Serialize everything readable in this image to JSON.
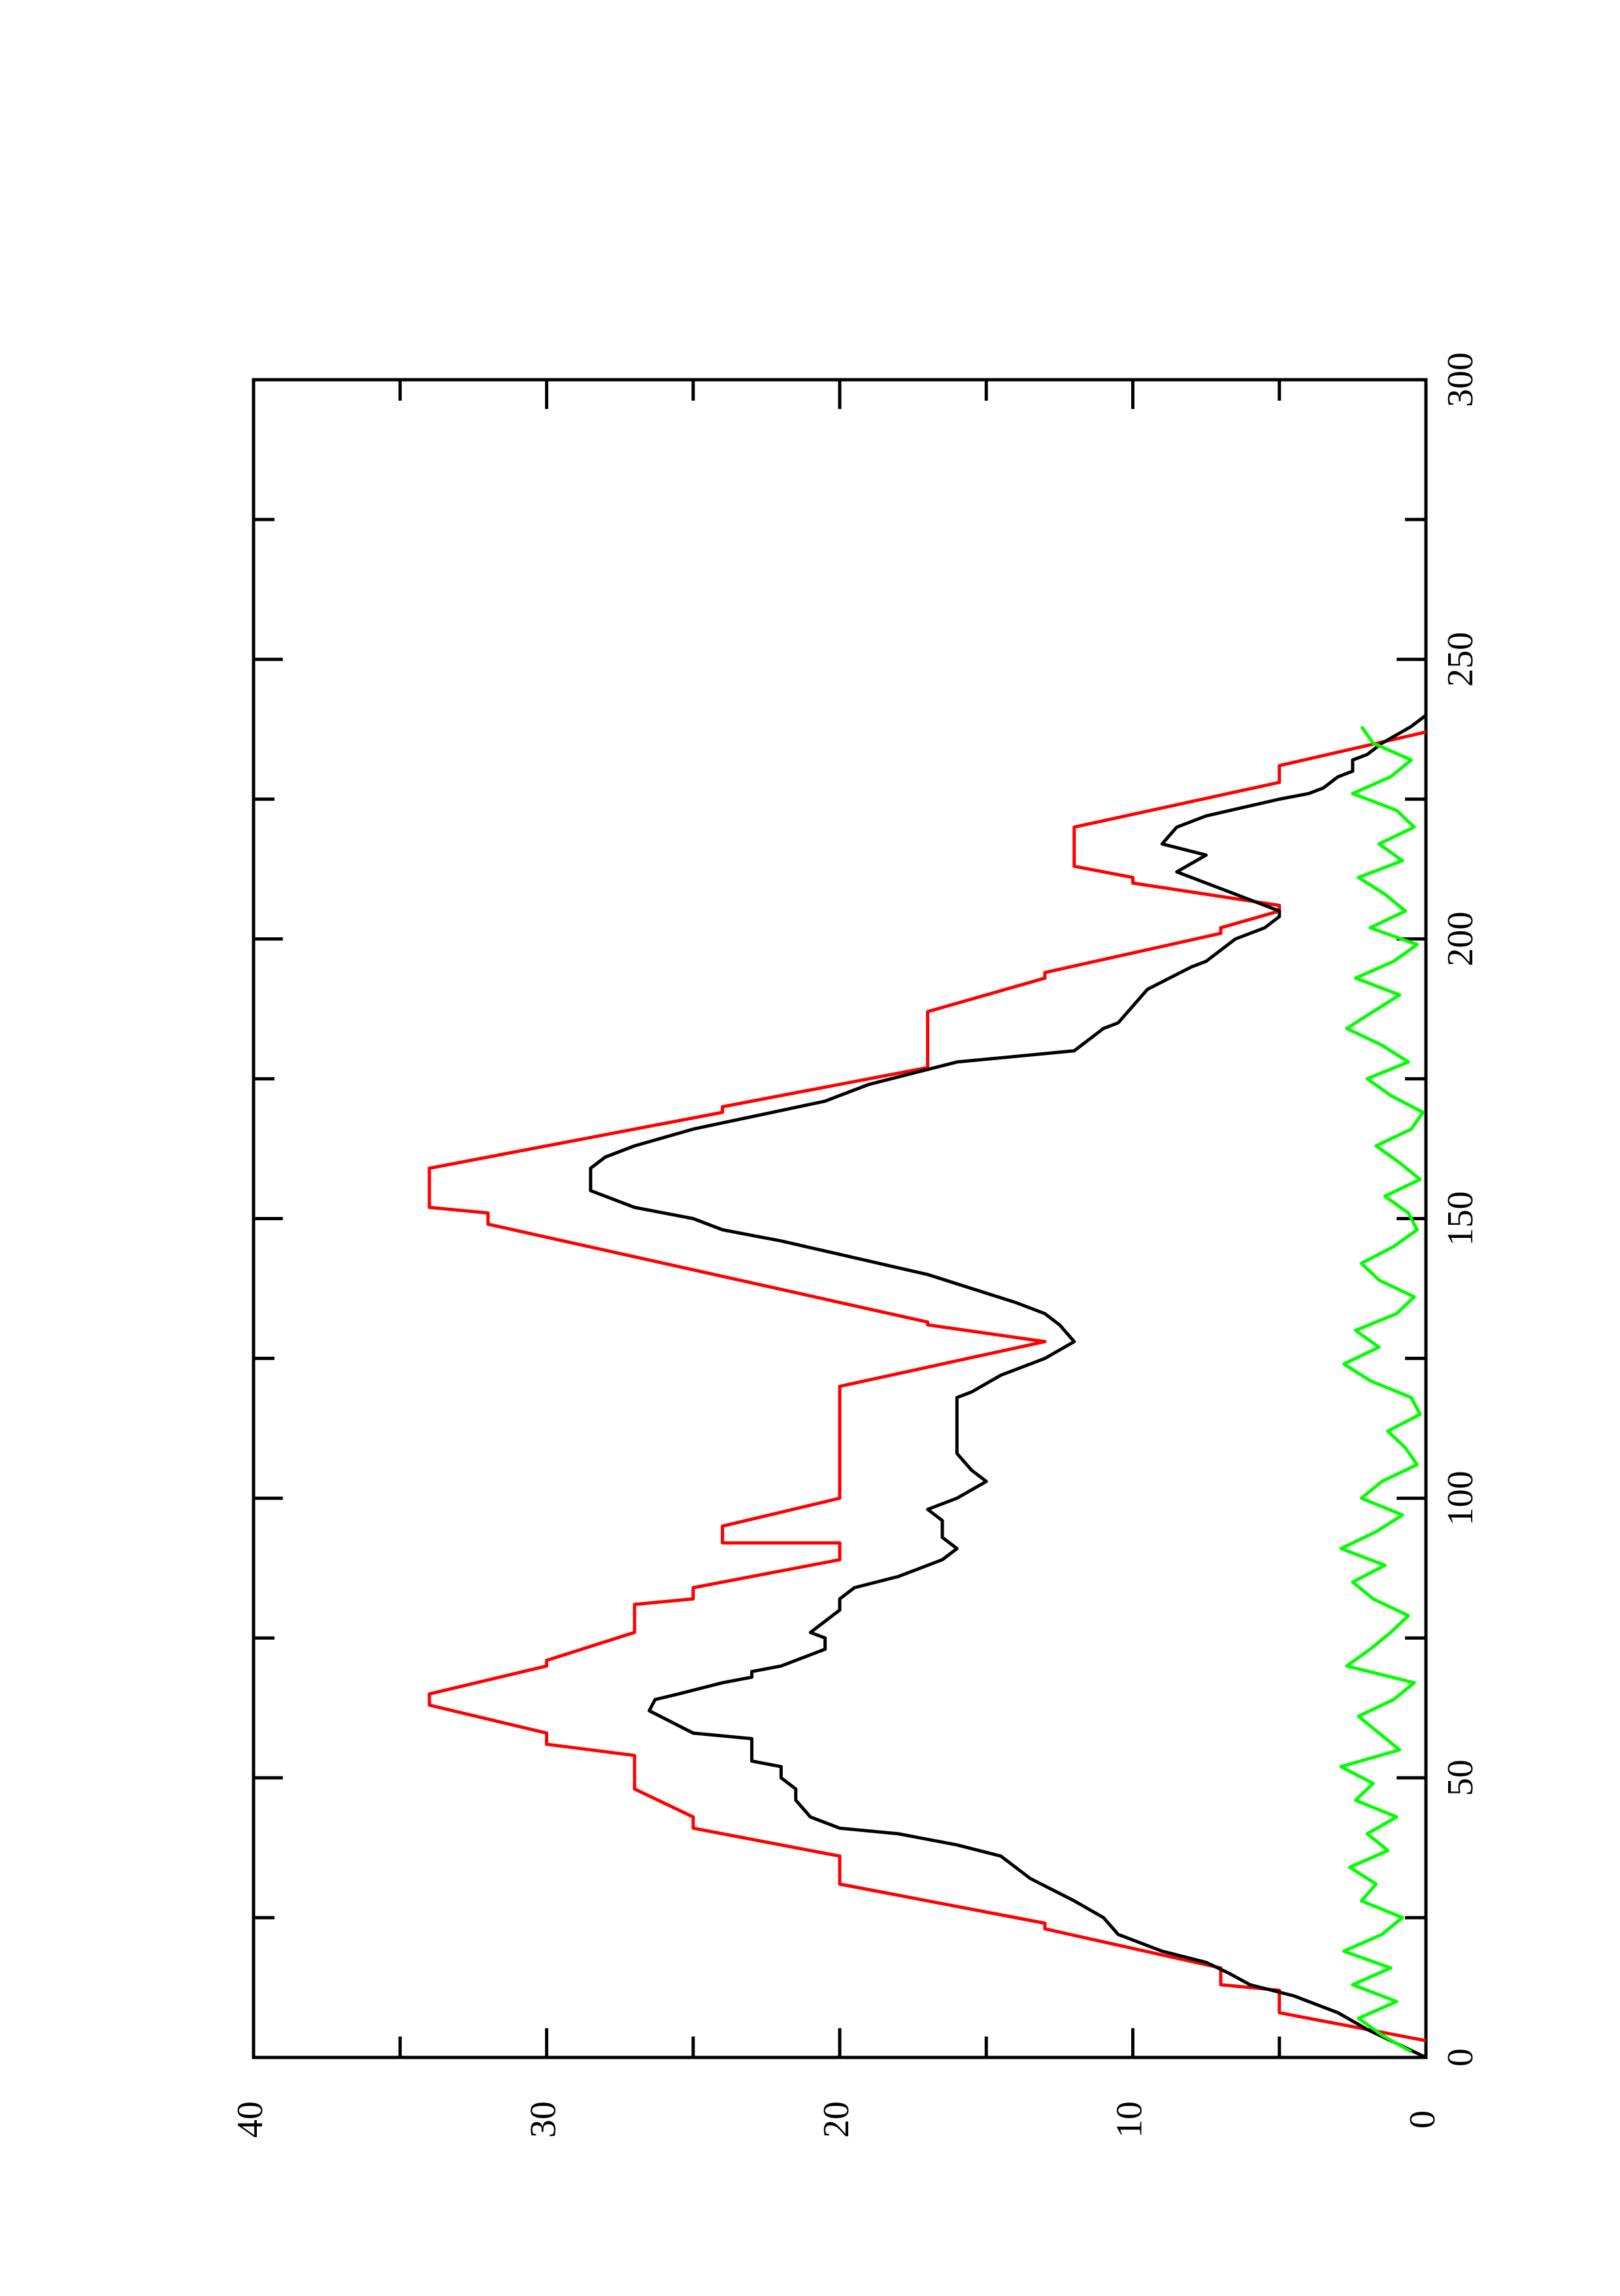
{
  "chart_data": {
    "type": "line",
    "xlim": [
      0,
      300
    ],
    "xticks": [
      0,
      50,
      100,
      150,
      200,
      250,
      300
    ],
    "xminorticks": [
      25,
      75,
      125,
      175,
      225,
      275
    ],
    "ylim": [
      0,
      40
    ],
    "yticks": [
      0,
      10,
      20,
      30,
      40
    ],
    "yminorticks": [
      5,
      15,
      25,
      35
    ],
    "series": [
      {
        "color": "#ff0000",
        "x": [
          3,
          8,
          12,
          13,
          16,
          23,
          24,
          31,
          36,
          41,
          43,
          48,
          54,
          56,
          58,
          63,
          65,
          70,
          71,
          76,
          81,
          82,
          84,
          89,
          92,
          92,
          95,
          100,
          120,
          128,
          131,
          131.5,
          149,
          151,
          152,
          159,
          169,
          170,
          177,
          187,
          193,
          194,
          201,
          202,
          205,
          206,
          210,
          211,
          213,
          220,
          228,
          231,
          237
        ],
        "values": [
          0,
          5,
          5,
          7,
          7,
          13,
          13,
          20,
          20,
          25,
          25,
          27,
          27,
          30,
          30,
          34,
          34,
          30,
          30,
          27,
          27,
          25,
          25,
          20,
          20,
          24,
          24,
          20,
          20,
          13,
          17,
          17,
          32,
          32,
          34,
          34,
          24,
          24,
          17,
          17,
          13,
          13,
          7,
          7,
          5,
          5,
          10,
          10,
          12,
          12,
          5,
          5,
          0
        ]
      },
      {
        "color": "#000000",
        "x": [
          0,
          5,
          8,
          11,
          13,
          15,
          17,
          19,
          21,
          22,
          25,
          28,
          32,
          34,
          36,
          38,
          40,
          41,
          42,
          43,
          46,
          48,
          50,
          52,
          53,
          57,
          58,
          62,
          64,
          65,
          67,
          68,
          69,
          70,
          72,
          73,
          75,
          76,
          78,
          80,
          82,
          84,
          86,
          89,
          91,
          93,
          96,
          98,
          100,
          103,
          105,
          108,
          118,
          119,
          122,
          125,
          128,
          131,
          133,
          135,
          140,
          146,
          147,
          148,
          150,
          151,
          152,
          155,
          159,
          161,
          163,
          166,
          171,
          174,
          178,
          180,
          184,
          185,
          188,
          191,
          195,
          196,
          198,
          200,
          202,
          204,
          205,
          206,
          208,
          211,
          212,
          215,
          217,
          220,
          222,
          225,
          226,
          227,
          229,
          230,
          232,
          233,
          235,
          238,
          240
        ],
        "values": [
          0,
          2,
          3,
          4.5,
          6,
          6.7,
          7.5,
          9,
          10,
          10.5,
          11,
          12,
          13.5,
          14,
          14.5,
          16,
          18,
          20,
          20.5,
          21,
          21.5,
          21.5,
          22,
          22,
          23,
          23,
          25,
          26.5,
          26.3,
          25.5,
          24,
          23,
          23,
          22,
          21,
          20.5,
          20.5,
          21,
          20.5,
          20,
          20,
          19.5,
          18,
          16.5,
          16,
          16.5,
          16.5,
          17,
          16,
          15,
          15.5,
          16,
          16,
          15.5,
          14.5,
          13,
          12,
          12.5,
          13,
          14,
          17,
          22,
          23,
          24,
          25,
          26,
          27,
          28.5,
          28.5,
          28,
          27,
          25,
          20.5,
          19,
          16,
          12,
          11,
          10.5,
          10,
          9.5,
          8,
          7.5,
          7,
          6.5,
          5.5,
          5,
          5,
          5.5,
          6.5,
          8,
          8.5,
          7.5,
          9,
          8.5,
          7.5,
          5,
          4,
          3.5,
          3,
          2.5,
          2.5,
          2,
          1.5,
          0.5,
          0
        ]
      },
      {
        "color": "#00ff00",
        "x": [
          1,
          4,
          7,
          10,
          13,
          16,
          19,
          22,
          25,
          28,
          31,
          34,
          37,
          40,
          43,
          46,
          49,
          52,
          55,
          58,
          61,
          64,
          67,
          70,
          73,
          76,
          79,
          82,
          85,
          88,
          91,
          94,
          97,
          100,
          103,
          106,
          109,
          112,
          115,
          118,
          121,
          124,
          127,
          130,
          133,
          136,
          139,
          142,
          145,
          148,
          151,
          154,
          157,
          160,
          163,
          166,
          169,
          172,
          175,
          178,
          181,
          184,
          187,
          190,
          193,
          196,
          199,
          202,
          205,
          208,
          211,
          214,
          217,
          220,
          223,
          226,
          229,
          232,
          235,
          238
        ],
        "values": [
          0.5,
          1.5,
          2.3,
          1.0,
          2.5,
          1.2,
          2.8,
          1.5,
          0.8,
          2.2,
          1.7,
          2.6,
          1.3,
          2.0,
          1.0,
          2.4,
          1.8,
          2.9,
          0.9,
          1.6,
          2.3,
          1.1,
          0.4,
          2.7,
          1.9,
          1.2,
          0.6,
          1.8,
          2.5,
          1.4,
          2.9,
          1.7,
          0.8,
          2.2,
          1.5,
          0.3,
          0.7,
          1.3,
          0.2,
          0.5,
          1.9,
          2.8,
          1.6,
          2.4,
          1.0,
          0.4,
          1.6,
          2.2,
          1.1,
          0.3,
          0.6,
          1.4,
          0.2,
          0.9,
          1.7,
          0.5,
          0.1,
          1.2,
          2.0,
          0.6,
          1.5,
          2.7,
          1.8,
          0.9,
          2.4,
          1.1,
          0.3,
          1.9,
          0.7,
          1.4,
          2.3,
          0.8,
          1.6,
          0.4,
          1.0,
          2.5,
          1.2,
          0.5,
          1.8,
          2.2
        ]
      }
    ]
  }
}
